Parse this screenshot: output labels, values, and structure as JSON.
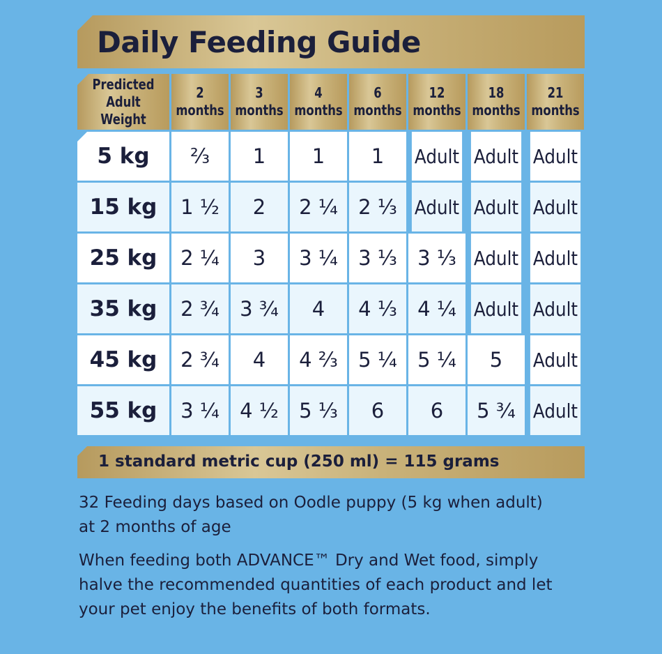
{
  "title": "Daily Feeding Guide",
  "header": {
    "weight_label_line1": "Predicted",
    "weight_label_line2": "Adult Weight",
    "ages": [
      {
        "num": "2",
        "unit": "months"
      },
      {
        "num": "3",
        "unit": "months"
      },
      {
        "num": "4",
        "unit": "months"
      },
      {
        "num": "6",
        "unit": "months"
      },
      {
        "num": "12",
        "unit": "months"
      },
      {
        "num": "18",
        "unit": "months"
      },
      {
        "num": "21",
        "unit": "months"
      }
    ]
  },
  "rows": [
    {
      "weight": "5 kg",
      "values": [
        "⅔",
        "1",
        "1",
        "1",
        "Adult",
        "Adult",
        "Adult"
      ]
    },
    {
      "weight": "15 kg",
      "values": [
        "1 ½",
        "2",
        "2 ¼",
        "2 ⅓",
        "Adult",
        "Adult",
        "Adult"
      ]
    },
    {
      "weight": "25 kg",
      "values": [
        "2 ¼",
        "3",
        "3 ¼",
        "3 ⅓",
        "3 ⅓",
        "Adult",
        "Adult"
      ]
    },
    {
      "weight": "35 kg",
      "values": [
        "2 ¾",
        "3 ¾",
        "4",
        "4 ⅓",
        "4 ¼",
        "Adult",
        "Adult"
      ]
    },
    {
      "weight": "45 kg",
      "values": [
        "2 ¾",
        "4",
        "4 ⅔",
        "5 ¼",
        "5 ¼",
        "5",
        "Adult"
      ]
    },
    {
      "weight": "55 kg",
      "values": [
        "3 ¼",
        "4 ½",
        "5 ⅓",
        "6",
        "6",
        "5 ¾",
        "Adult"
      ]
    }
  ],
  "cup_note": "1 standard metric cup (250 ml) = 115 grams",
  "notes": [
    "32 Feeding days based on Oodle puppy (5 kg when adult) at 2 months of age",
    "When feeding both ADVANCE™ Dry and Wet food, simply halve the recommended quantities of each product and let your pet enjoy the benefits of both formats."
  ],
  "colors": {
    "background": "#69b4e6",
    "gold": "#c9b27a",
    "text": "#1b1f3b",
    "cell_white": "#ffffff",
    "cell_alt": "#eaf6fd"
  }
}
